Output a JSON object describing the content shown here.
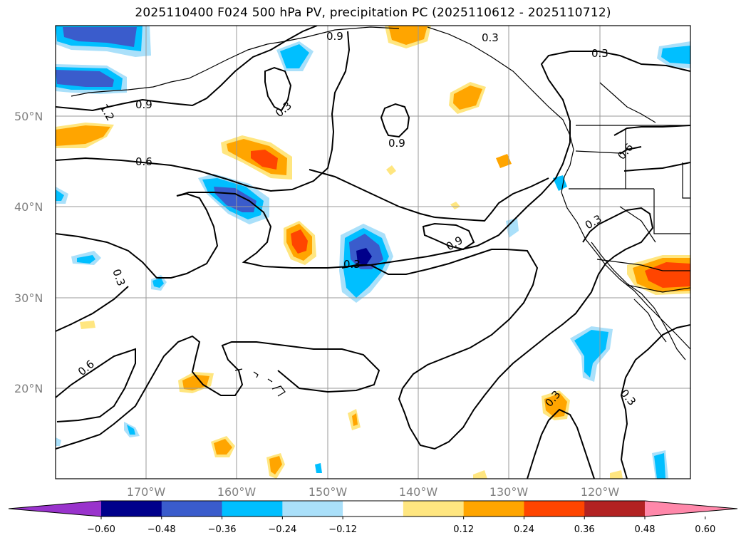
{
  "title": "2025110400 F024 500 hPa PV, precipitation PC (2025110612 - 2025110712)",
  "map": {
    "lon_labels": [
      "170°W",
      "160°W",
      "150°W",
      "140°W",
      "130°W",
      "120°W"
    ],
    "lat_labels": [
      "50°N",
      "40°N",
      "30°N",
      "20°N"
    ],
    "contour_labels": [
      "0.9",
      "0.3",
      "0.3",
      "1.2",
      "0.9",
      "0.3",
      "0.9",
      "0.6",
      "0.6",
      "0.3",
      "0.9",
      "0.3",
      "0.3",
      "0.6",
      "0.3",
      "0.3"
    ]
  },
  "colorbar": {
    "tick_labels": [
      "−0.60",
      "−0.48",
      "−0.36",
      "−0.24",
      "−0.12",
      "0.12",
      "0.24",
      "0.36",
      "0.48",
      "0.60"
    ],
    "colors": [
      "#9933cc",
      "#00008b",
      "#3a5ccc",
      "#00bfff",
      "#aae0fa",
      "#ffffff",
      "#ffe680",
      "#ffa500",
      "#ff4500",
      "#b22222",
      "#ff88aa"
    ]
  }
}
